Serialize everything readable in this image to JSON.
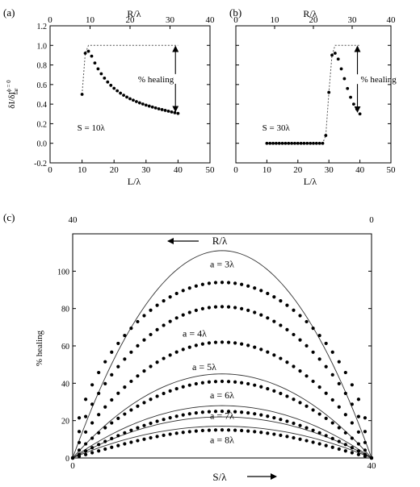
{
  "chart_data": [
    {
      "id": "a",
      "type": "scatter",
      "panel_label": "(a)",
      "xlabel": "L/λ",
      "top_xlabel": "R/λ",
      "ylabel": "δI/δI",
      "ylabel_sup": "ϕ = 0",
      "ylabel_sub": "far",
      "xlim": [
        0,
        50
      ],
      "top_xlim": [
        0,
        40
      ],
      "ylim": [
        -0.2,
        1.2
      ],
      "x_ticks": [
        "0",
        "10",
        "20",
        "30",
        "40",
        "50"
      ],
      "top_x_ticks": [
        "0",
        "10",
        "20",
        "30",
        "40"
      ],
      "y_ticks": [
        "-0.2",
        "0.0",
        "0.2",
        "0.4",
        "0.6",
        "0.8",
        "1.0",
        "1.2"
      ],
      "annotations": {
        "param": "S = 10λ",
        "arrow_label": "% healing"
      },
      "series": [
        {
          "style": "dots",
          "x": [
            10,
            11,
            12,
            13,
            14,
            15,
            16,
            17,
            18,
            19,
            20,
            21,
            22,
            23,
            24,
            25,
            26,
            27,
            28,
            29,
            30,
            31,
            32,
            33,
            34,
            35,
            36,
            37,
            38,
            39,
            40
          ],
          "y": [
            0.5,
            0.92,
            0.94,
            0.89,
            0.82,
            0.76,
            0.71,
            0.666,
            0.626,
            0.592,
            0.562,
            0.536,
            0.512,
            0.491,
            0.472,
            0.455,
            0.44,
            0.426,
            0.413,
            0.401,
            0.39,
            0.38,
            0.37,
            0.361,
            0.352,
            0.344,
            0.336,
            0.328,
            0.32,
            0.312,
            0.305
          ]
        },
        {
          "style": "dashed",
          "x": [
            10,
            11,
            12,
            13,
            15,
            20,
            25,
            30,
            35,
            40
          ],
          "y": [
            0.5,
            0.92,
            1.0,
            1.0,
            1.0,
            1.0,
            1.0,
            1.0,
            1.0,
            1.0
          ]
        }
      ]
    },
    {
      "id": "b",
      "type": "scatter",
      "panel_label": "(b)",
      "xlabel": "L/λ",
      "top_xlabel": "R/λ",
      "xlim": [
        0,
        50
      ],
      "top_xlim": [
        0,
        40
      ],
      "ylim": [
        -0.2,
        1.2
      ],
      "x_ticks": [
        "0",
        "10",
        "20",
        "30",
        "40",
        "50"
      ],
      "top_x_ticks": [
        "0",
        "10",
        "20",
        "30",
        "40"
      ],
      "annotations": {
        "param": "S = 30λ",
        "arrow_label": "% healing"
      },
      "series": [
        {
          "style": "dots",
          "x": [
            10,
            11,
            12,
            13,
            14,
            15,
            16,
            17,
            18,
            19,
            20,
            21,
            22,
            23,
            24,
            25,
            26,
            27,
            28,
            29,
            30,
            31,
            32,
            33,
            34,
            35,
            36,
            37,
            38,
            39,
            40
          ],
          "y": [
            0,
            0,
            0,
            0,
            0,
            0,
            0,
            0,
            0,
            0,
            0,
            0,
            0,
            0,
            0,
            0,
            0,
            0,
            0,
            0.08,
            0.52,
            0.9,
            0.92,
            0.86,
            0.76,
            0.66,
            0.56,
            0.47,
            0.4,
            0.35,
            0.3
          ]
        },
        {
          "style": "dashed",
          "x": [
            10,
            28,
            29,
            30,
            31,
            32,
            33,
            35,
            40
          ],
          "y": [
            0,
            0,
            0.08,
            0.52,
            0.9,
            1.0,
            1.0,
            1.0,
            1.0
          ]
        }
      ]
    },
    {
      "id": "c",
      "type": "scatter",
      "panel_label": "(c)",
      "xlabel": "S/λ",
      "top_xlabel": "R/λ",
      "ylabel": "% healing",
      "xlim": [
        0,
        40
      ],
      "ylim": [
        0,
        120
      ],
      "x_ticks": [
        "0",
        "40"
      ],
      "top_x_ticks": [
        "40",
        "0"
      ],
      "y_ticks": [
        "0",
        "20",
        "40",
        "60",
        "80",
        "100"
      ],
      "curve_labels": [
        "a = 3λ",
        "a = 4λ",
        "a = 5λ",
        "a = 6λ",
        "a = 7λ",
        "a = 8λ"
      ],
      "dot_series_peaks": [
        94,
        81,
        62,
        41,
        25,
        15
      ],
      "line_series_peaks": [
        111,
        45,
        28,
        22,
        17
      ],
      "label_positions_data": [
        [
          20,
          102
        ],
        [
          20,
          65
        ],
        [
          20,
          47
        ],
        [
          20,
          32
        ],
        [
          20,
          21
        ],
        [
          20,
          8
        ]
      ]
    }
  ]
}
